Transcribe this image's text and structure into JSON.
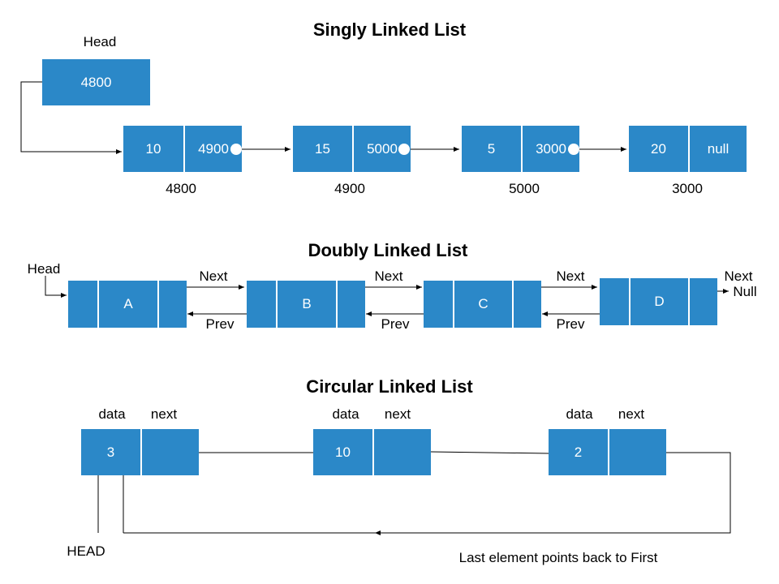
{
  "titles": {
    "singly": "Singly Linked List",
    "doubly": "Doubly Linked List",
    "circular": "Circular Linked List"
  },
  "singly": {
    "head_label": "Head",
    "head_value": "4800",
    "nodes": [
      {
        "data": "10",
        "next": "4900",
        "address": "4800"
      },
      {
        "data": "15",
        "next": "5000",
        "address": "4900"
      },
      {
        "data": "5",
        "next": "3000",
        "address": "5000"
      },
      {
        "data": "20",
        "next": "null",
        "address": "3000"
      }
    ]
  },
  "doubly": {
    "head_label": "Head",
    "next_label": "Next",
    "prev_label": "Prev",
    "null_label": "Null",
    "nodes": [
      {
        "value": "A"
      },
      {
        "value": "B"
      },
      {
        "value": "C"
      },
      {
        "value": "D"
      }
    ]
  },
  "circular": {
    "data_label": "data",
    "next_label": "next",
    "head_label": "HEAD",
    "caption": "Last element points back to First",
    "nodes": [
      {
        "value": "3"
      },
      {
        "value": "10"
      },
      {
        "value": "2"
      }
    ]
  },
  "colors": {
    "node_fill": "#2b88c8",
    "node_text": "#ffffff",
    "line": "#000000"
  }
}
